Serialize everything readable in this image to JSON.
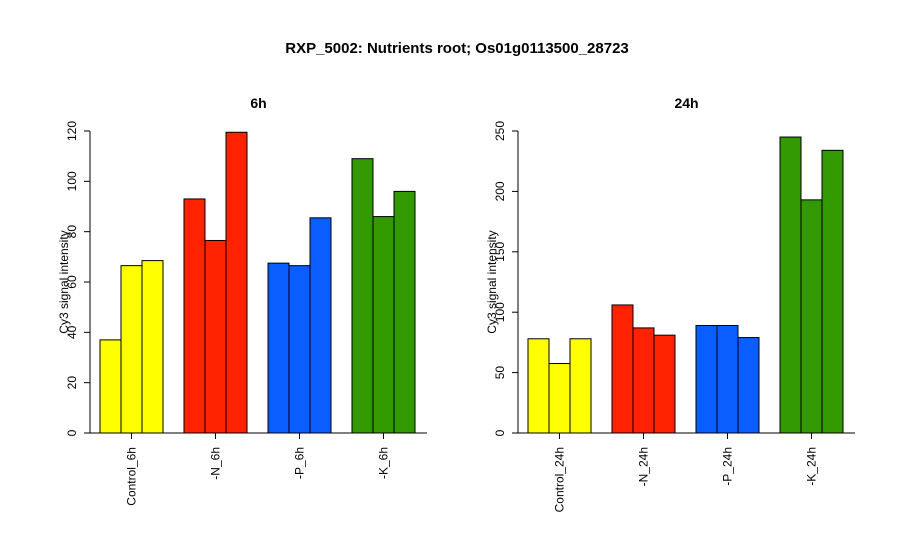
{
  "main_title": "RXP_5002: Nutrients root; Os01g0113500_28723",
  "colors": {
    "control": "#ffff00",
    "minus_n": "#ff2200",
    "minus_p": "#0a5eff",
    "minus_k": "#339900"
  },
  "chart_data": [
    {
      "type": "bar",
      "title": "6h",
      "ylabel": "Cy3 signal intensity",
      "ylim": [
        0,
        120
      ],
      "yticks": [
        0,
        20,
        40,
        60,
        80,
        100,
        120
      ],
      "groups": [
        {
          "label": "Control_6h",
          "color_key": "control",
          "values": [
            37,
            66.5,
            68.5
          ]
        },
        {
          "label": "-N_6h",
          "color_key": "minus_n",
          "values": [
            93,
            76.5,
            119.5
          ]
        },
        {
          "label": "-P_6h",
          "color_key": "minus_p",
          "values": [
            67.5,
            66.5,
            85.5
          ]
        },
        {
          "label": "-K_6h",
          "color_key": "minus_k",
          "values": [
            109,
            86,
            96
          ]
        }
      ]
    },
    {
      "type": "bar",
      "title": "24h",
      "ylabel": "Cy3 signal intensity",
      "ylim": [
        0,
        250
      ],
      "yticks": [
        0,
        50,
        100,
        150,
        200,
        250
      ],
      "groups": [
        {
          "label": "Control_24h",
          "color_key": "control",
          "values": [
            78,
            57.5,
            78
          ]
        },
        {
          "label": "-N_24h",
          "color_key": "minus_n",
          "values": [
            106,
            87,
            81
          ]
        },
        {
          "label": "-P_24h",
          "color_key": "minus_p",
          "values": [
            89,
            89,
            79
          ]
        },
        {
          "label": "-K_24h",
          "color_key": "minus_k",
          "values": [
            245,
            193,
            234
          ]
        }
      ]
    }
  ]
}
